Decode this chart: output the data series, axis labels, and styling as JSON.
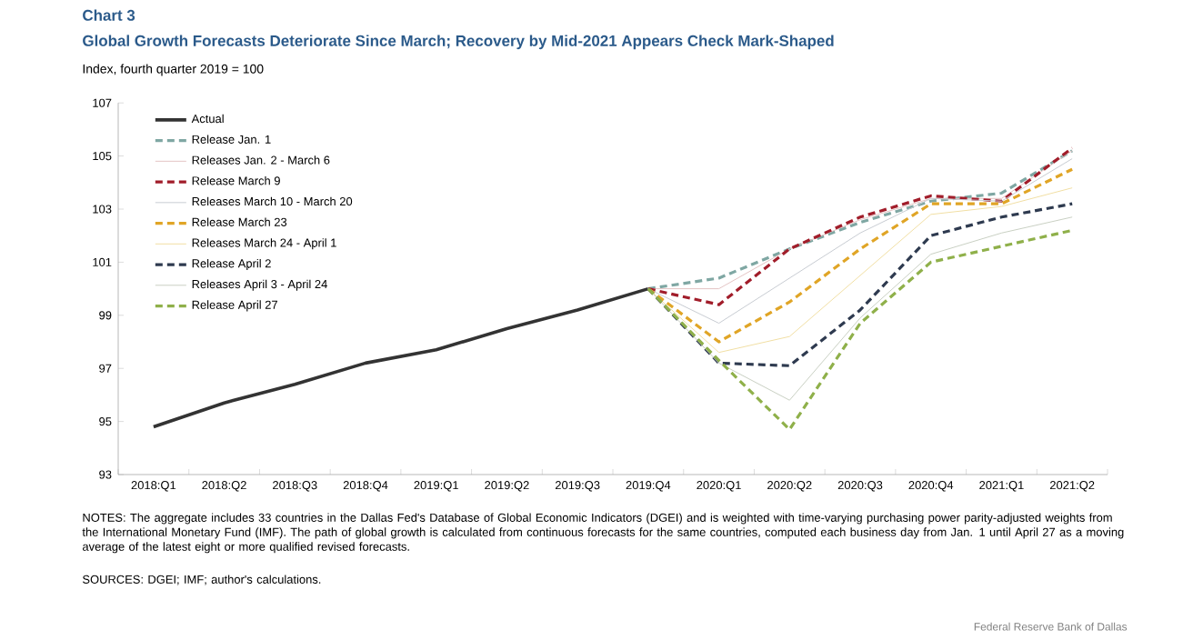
{
  "chart_data": {
    "type": "line",
    "title": "Chart 3",
    "subtitle": "Global Growth Forecasts Deteriorate Since March; Recovery by Mid-2021 Appears Check Mark-Shaped",
    "ylabel": "Index, fourth quarter 2019 = 100",
    "categories": [
      "2018:Q1",
      "2018:Q2",
      "2018:Q3",
      "2018:Q4",
      "2019:Q1",
      "2019:Q2",
      "2019:Q3",
      "2019:Q4",
      "2020:Q1",
      "2020:Q2",
      "2020:Q3",
      "2020:Q4",
      "2021:Q1",
      "2021:Q2"
    ],
    "ylim": [
      93,
      107
    ],
    "yticks": [
      93,
      95,
      97,
      99,
      101,
      103,
      105,
      107
    ],
    "grid": false,
    "legend": "top left",
    "marker": "none",
    "series": [
      {
        "name": "Actual",
        "color": "#333333",
        "line_style": "solid",
        "values": [
          94.8,
          95.7,
          96.4,
          97.2,
          97.7,
          98.5,
          99.2,
          100,
          null,
          null,
          null,
          null,
          null,
          null
        ]
      },
      {
        "name": "Release Jan. 1",
        "color": "#7fa7a3",
        "line_style": "dashed",
        "values": [
          null,
          null,
          null,
          null,
          null,
          null,
          null,
          100,
          100.4,
          101.5,
          102.5,
          103.3,
          103.6,
          105.2
        ]
      },
      {
        "name": "Releases Jan. 2 - March 6",
        "color": "#e4c4c4",
        "line_style": "solid",
        "values": [
          null,
          null,
          null,
          null,
          null,
          null,
          null,
          100,
          100.0,
          101.5,
          102.6,
          103.4,
          103.4,
          105.2
        ]
      },
      {
        "name": "Release March 9",
        "color": "#a11d2a",
        "line_style": "dashed",
        "values": [
          null,
          null,
          null,
          null,
          null,
          null,
          null,
          100,
          99.4,
          101.5,
          102.7,
          103.5,
          103.3,
          105.3
        ]
      },
      {
        "name": "Releases March 10 - March 20",
        "color": "#c8ccd2",
        "line_style": "solid",
        "values": [
          null,
          null,
          null,
          null,
          null,
          null,
          null,
          100,
          98.7,
          100.4,
          102.1,
          103.4,
          103.3,
          104.9
        ]
      },
      {
        "name": "Release March 23",
        "color": "#e0a526",
        "line_style": "dashed",
        "values": [
          null,
          null,
          null,
          null,
          null,
          null,
          null,
          100,
          98.0,
          99.5,
          101.5,
          103.2,
          103.2,
          104.5
        ]
      },
      {
        "name": "Releases March 24 - April 1",
        "color": "#f1dfa4",
        "line_style": "solid",
        "values": [
          null,
          null,
          null,
          null,
          null,
          null,
          null,
          100,
          97.6,
          98.2,
          100.5,
          102.8,
          103.1,
          103.8
        ]
      },
      {
        "name": "Release April 2",
        "color": "#2e3a4f",
        "line_style": "dashed",
        "values": [
          null,
          null,
          null,
          null,
          null,
          null,
          null,
          100,
          97.2,
          97.1,
          99.2,
          102.0,
          102.7,
          103.2
        ]
      },
      {
        "name": "Releases April 3 - April 24",
        "color": "#c9d0c3",
        "line_style": "solid",
        "values": [
          null,
          null,
          null,
          null,
          null,
          null,
          null,
          100,
          97.2,
          95.8,
          98.9,
          101.3,
          102.1,
          102.7
        ]
      },
      {
        "name": "Release April 27",
        "color": "#8fb04a",
        "line_style": "dashed",
        "values": [
          null,
          null,
          null,
          null,
          null,
          null,
          null,
          100,
          97.3,
          94.7,
          98.7,
          101.0,
          101.6,
          102.2
        ]
      }
    ],
    "annotations": [
      "NOTES: The aggregate includes 33 countries in the Dallas Fed's Database of Global Economic Indicators (DGEI) and is weighted with time-varying purchasing power parity-adjusted weights from the International Monetary Fund (IMF). The path of global growth is calculated from continuous forecasts for the same countries, computed each business day from Jan. 1 until April 27 as a moving average of the latest eight or more qualified revised forecasts.",
      "SOURCES: DGEI; IMF; author's calculations.",
      "Federal Reserve Bank of Dallas"
    ]
  }
}
